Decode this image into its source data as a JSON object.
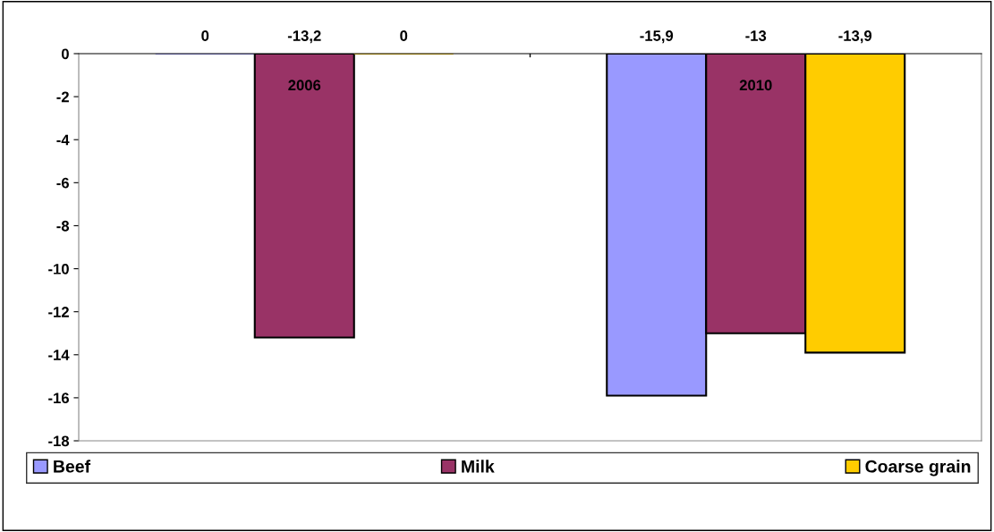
{
  "chart_data": {
    "type": "bar",
    "categories": [
      "2006",
      "2010"
    ],
    "series": [
      {
        "name": "Beef",
        "color": "#9999ff",
        "values": [
          0,
          -15.9
        ],
        "value_labels": [
          "0",
          "-15,9"
        ]
      },
      {
        "name": "Milk",
        "color": "#993366",
        "values": [
          -13.2,
          -13
        ],
        "value_labels": [
          "-13,2",
          "-13"
        ]
      },
      {
        "name": "Coarse grain",
        "color": "#ffcc00",
        "values": [
          0,
          -13.9
        ],
        "value_labels": [
          "0",
          "-13,9"
        ]
      }
    ],
    "ylim": [
      -18,
      0
    ],
    "yticks": [
      -18,
      -16,
      -14,
      -12,
      -10,
      -8,
      -6,
      -4,
      -2,
      0
    ],
    "grid": false,
    "legend": "bottom"
  }
}
